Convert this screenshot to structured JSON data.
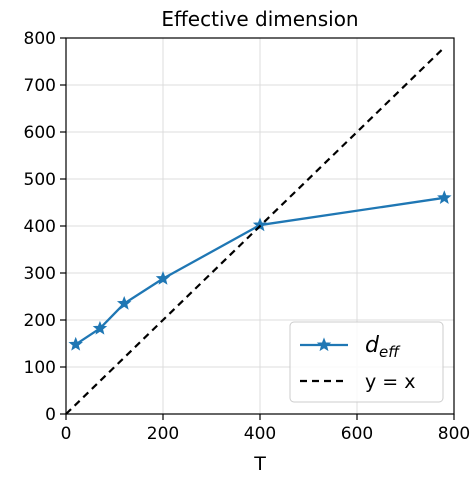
{
  "chart_data": {
    "type": "line",
    "title": "Effective dimension",
    "xlabel": "T",
    "ylabel": "",
    "xlim": [
      0,
      800
    ],
    "ylim": [
      0,
      800
    ],
    "xticks": [
      0,
      200,
      400,
      600,
      800
    ],
    "yticks": [
      0,
      100,
      200,
      300,
      400,
      500,
      600,
      700,
      800
    ],
    "grid": true,
    "legend_position": "lower-right",
    "series": [
      {
        "name": "d_eff",
        "legend_label": {
          "main": "d",
          "sub": "eff"
        },
        "color": "#1f77b4",
        "linestyle": "solid",
        "marker": "star",
        "x": [
          20,
          70,
          120,
          200,
          400,
          780
        ],
        "y": [
          148,
          182,
          235,
          288,
          402,
          460
        ]
      },
      {
        "name": "y = x",
        "legend_label": {
          "main": "y = x",
          "sub": ""
        },
        "color": "#000000",
        "linestyle": "dashed",
        "marker": "none",
        "x": [
          0,
          780
        ],
        "y": [
          0,
          780
        ]
      }
    ]
  }
}
